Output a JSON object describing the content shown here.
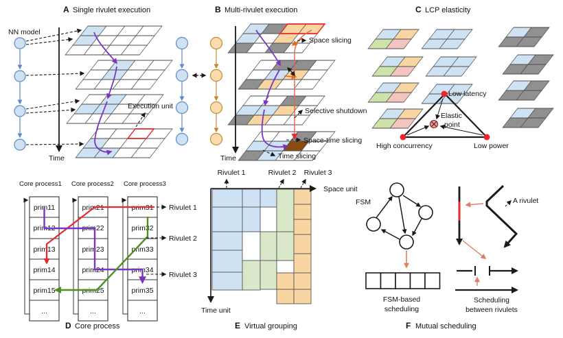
{
  "figure": {
    "colors": {
      "light_blue": "#cfe2f3",
      "light_orange": "#f9d5a2",
      "gray_cell": "#909090",
      "light_green": "#cde3a9",
      "pale_green": "#d9e8c8",
      "light_pink": "#f4c5c0",
      "brown_cell": "#8a4a10",
      "red": "#e8262b",
      "purple": "#7a35c0",
      "green_path": "#4f8f1f",
      "soft_red": "#dd7e6b",
      "chain_blue": "#5b8ac5",
      "chain_orange": "#c08a2e"
    }
  },
  "panel_a": {
    "letter": "A",
    "title": "Single rivulet execution",
    "nn_model_label": "NN model",
    "time_label": "Time",
    "execution_unit_label": "Execution unit"
  },
  "panel_b": {
    "letter": "B",
    "title": "Multi-rivulet execution",
    "space_slicing_label": "Space slicing",
    "selective_shutdown_label": "Selective shutdown",
    "space_time_slicing_label": "Space-time slicing",
    "time_slicing_label": "Time slicing",
    "time_label": "Time"
  },
  "panel_c": {
    "letter": "C",
    "title": "LCP elasticity",
    "low_latency_label": "Low latency",
    "elastic_point_line1": "Elastic",
    "elastic_point_line2": "point",
    "high_concurrency_label": "High concurrency",
    "low_power_label": "Low power"
  },
  "panel_d": {
    "letter": "D",
    "caption": "Core process",
    "headers": [
      "Core process1",
      "Core process2",
      "Core process3"
    ],
    "columns": [
      [
        "prim11",
        "prim12",
        "prim13",
        "prim14",
        "prim15",
        "..."
      ],
      [
        "prim21",
        "prim22",
        "prim23",
        "prim24",
        "prim25",
        "..."
      ],
      [
        "prim31",
        "prim32",
        "prim33",
        "prim34",
        "prim35",
        "..."
      ]
    ],
    "rivulet_labels": [
      "Rivulet 1",
      "Rivulet 2",
      "Rivulet 3"
    ]
  },
  "panel_e": {
    "letter": "E",
    "caption": "Virtual grouping",
    "rivulet_labels": [
      "Rivulet 1",
      "Rivulet 2",
      "Rivulet 3"
    ],
    "space_unit_label": "Space unit",
    "time_unit_label": "Time unit"
  },
  "panel_f": {
    "letter": "F",
    "caption": "Mutual scheduling",
    "fsm_label": "FSM",
    "fsm_scheduling_line1": "FSM-based",
    "fsm_scheduling_line2": "scheduling",
    "a_rivulet_label": "A rivulet",
    "between_scheduling_line1": "Scheduling",
    "between_scheduling_line2": "between rivulets"
  }
}
